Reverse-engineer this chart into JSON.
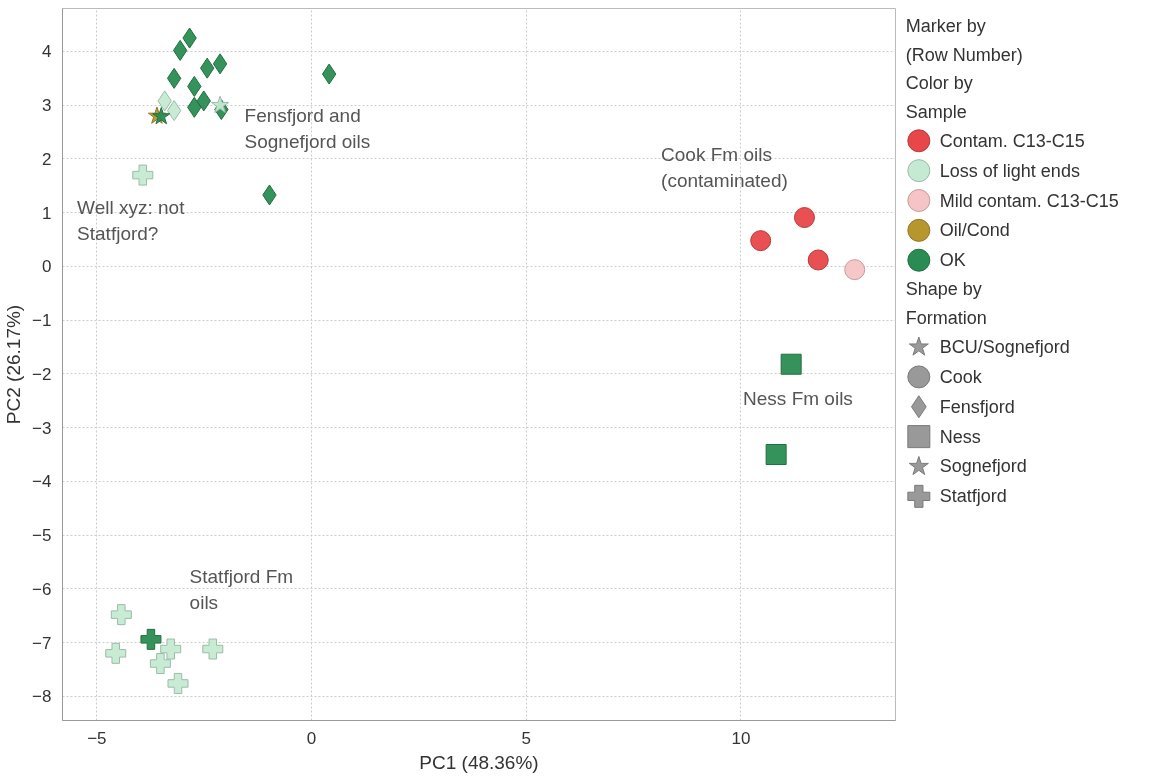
{
  "chart_data": {
    "type": "scatter",
    "xlabel": "PC1 (48.36%)",
    "ylabel": "PC2 (26.17%)",
    "legend_title": "Marker by\n(Row Number)",
    "xlim": [
      -5.8,
      13.6
    ],
    "ylim": [
      -8.45,
      4.8
    ],
    "xticks": [
      -5,
      0,
      5,
      10
    ],
    "yticks": [
      -8,
      -7,
      -6,
      -5,
      -4,
      -3,
      -2,
      -1,
      0,
      1,
      2,
      3,
      4
    ],
    "grid": true,
    "legend": "right",
    "annotations": [
      "Fensfjord and\nSognefjord oils",
      "Well xyz: not\nStatfjord?",
      "Cook Fm oils\n(contaminated)",
      "Ness Fm oils",
      "Statfjord Fm\noils",
      "Color by\nSample",
      "Shape by\nFormation"
    ],
    "series": [
      {
        "color": "#2a8c52",
        "marker": "diamond",
        "x": [
          -2.84,
          -3.06,
          -2.43,
          -2.13,
          -3.2,
          -2.73,
          -2.73,
          -2.51,
          -2.1,
          0.41,
          -0.98
        ],
        "values": [
          4.25,
          4.02,
          3.69,
          3.77,
          3.5,
          3.35,
          2.96,
          3.08,
          2.92,
          3.58,
          1.33
        ]
      },
      {
        "color": "#c5ead2",
        "marker": "diamond",
        "x": [
          -3.42,
          -3.2
        ],
        "values": [
          3.08,
          2.9
        ]
      },
      {
        "color": "#b8962e",
        "marker": "star",
        "x": [
          -3.6
        ],
        "values": [
          2.8
        ]
      },
      {
        "color": "#2a8c52",
        "marker": "star",
        "x": [
          -3.5
        ],
        "values": [
          2.79
        ]
      },
      {
        "color": "#c5ead2",
        "marker": "star",
        "x": [
          -2.13
        ],
        "values": [
          3.0
        ]
      },
      {
        "color": "#c5ead2",
        "marker": "cross",
        "x": [
          -3.93,
          -4.43,
          -4.56,
          -3.28,
          -3.52,
          -2.3,
          -3.11
        ],
        "values": [
          1.7,
          -6.48,
          -7.2,
          -7.12,
          -7.39,
          -7.12,
          -7.76
        ]
      },
      {
        "color": "#2a8c52",
        "marker": "cross",
        "x": [
          -3.74
        ],
        "values": [
          -6.94
        ]
      },
      {
        "color": "#e8474a",
        "marker": "circle",
        "x": [
          11.48,
          10.46,
          11.8
        ],
        "values": [
          0.91,
          0.48,
          0.12
        ]
      },
      {
        "color": "#f6c4c4",
        "marker": "circle",
        "x": [
          12.65
        ],
        "values": [
          -0.06
        ]
      },
      {
        "color": "#2a8c52",
        "marker": "square",
        "x": [
          11.17,
          10.82
        ],
        "values": [
          -1.82,
          -3.5
        ]
      },
      {
        "name": "Contam. C13-C15",
        "color": "#e8474a",
        "marker": "circle"
      },
      {
        "name": "Loss of light ends",
        "color": "#c5ead2",
        "marker": "circle"
      },
      {
        "name": "Mild contam. C13-C15",
        "color": "#f6c4c4",
        "marker": "circle"
      },
      {
        "name": "Oil/Cond",
        "color": "#b8962e",
        "marker": "circle"
      },
      {
        "name": "OK",
        "color": "#2a8c52",
        "marker": "circle"
      },
      {
        "name": "BCU/Sognefjord",
        "color": "#999999",
        "marker": "star"
      },
      {
        "name": "Cook",
        "color": "#999999",
        "marker": "circle"
      },
      {
        "name": "Fensfjord",
        "color": "#999999",
        "marker": "diamond"
      },
      {
        "name": "Ness",
        "color": "#999999",
        "marker": "square"
      },
      {
        "name": "Sognefjord",
        "color": "#999999",
        "marker": "star"
      },
      {
        "name": "Statfjord",
        "color": "#999999",
        "marker": "cross"
      }
    ]
  }
}
